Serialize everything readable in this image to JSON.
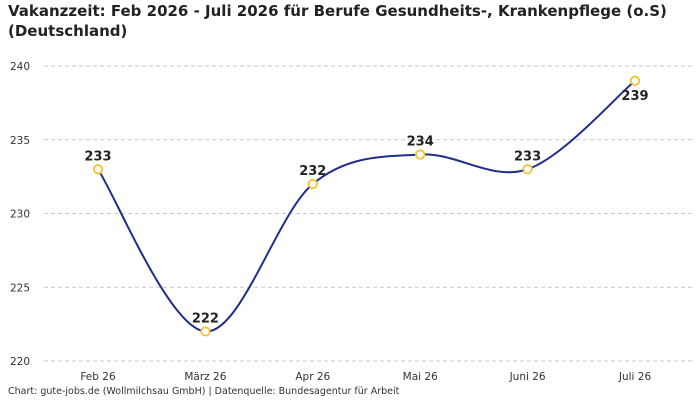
{
  "title": "Vakanzzeit: Feb 2026 - Juli 2026 für Berufe Gesundheits-, Krankenpflege (o.S) (Deutschland)",
  "footer": "Chart: gute-jobs.de (Wollmilchsau GmbH) | Datenquelle: Bundesagentur für Arbeit",
  "chart_data": {
    "type": "line",
    "title": "Vakanzzeit: Feb 2026 - Juli 2026 für Berufe Gesundheits-, Krankenpflege (o.S) (Deutschland)",
    "categories": [
      "Feb 26",
      "März 26",
      "Apr 26",
      "Mai 26",
      "Juni 26",
      "Juli 26"
    ],
    "values": [
      233,
      222,
      232,
      234,
      233,
      239
    ],
    "yticks": [
      220,
      225,
      230,
      235,
      240
    ],
    "ylim": [
      220,
      240
    ],
    "grid": true,
    "line_color": "#1f2e8a",
    "marker_color": "#f2c230"
  }
}
